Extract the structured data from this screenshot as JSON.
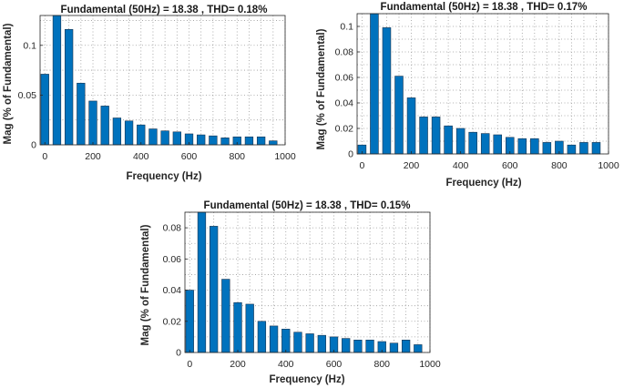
{
  "chart_data": [
    {
      "type": "bar",
      "title": "Fundamental (50Hz) = 18.38 , THD= 0.18%",
      "xlabel": "Frequency (Hz)",
      "ylabel": "Mag (% of Fundamental)",
      "xlim": [
        -20,
        1000
      ],
      "ylim": [
        0,
        0.13
      ],
      "grid": true,
      "xticks": [
        0,
        200,
        400,
        600,
        800,
        1000
      ],
      "yticks": [
        0,
        0.05,
        0.1
      ],
      "x": [
        0,
        50,
        100,
        150,
        200,
        250,
        300,
        350,
        400,
        450,
        500,
        550,
        600,
        650,
        700,
        750,
        800,
        850,
        900,
        950
      ],
      "values": [
        0.071,
        0.13,
        0.116,
        0.062,
        0.044,
        0.039,
        0.027,
        0.024,
        0.02,
        0.016,
        0.014,
        0.013,
        0.011,
        0.01,
        0.009,
        0.007,
        0.008,
        0.008,
        0.008,
        0.004
      ]
    },
    {
      "type": "bar",
      "title": "Fundamental (50Hz) = 18.38 , THD= 0.17%",
      "xlabel": "Frequency (Hz)",
      "ylabel": "Mag (% of Fundamental)",
      "xlim": [
        -20,
        1000
      ],
      "ylim": [
        0,
        0.11
      ],
      "grid": true,
      "xticks": [
        0,
        200,
        400,
        600,
        800,
        1000
      ],
      "yticks": [
        0,
        0.02,
        0.04,
        0.06,
        0.08,
        0.1
      ],
      "x": [
        0,
        50,
        100,
        150,
        200,
        250,
        300,
        350,
        400,
        450,
        500,
        550,
        600,
        650,
        700,
        750,
        800,
        850,
        900,
        950
      ],
      "values": [
        0.007,
        0.11,
        0.099,
        0.061,
        0.044,
        0.029,
        0.029,
        0.022,
        0.02,
        0.017,
        0.016,
        0.015,
        0.013,
        0.012,
        0.012,
        0.009,
        0.01,
        0.007,
        0.009,
        0.009
      ]
    },
    {
      "type": "bar",
      "title": "Fundamental (50Hz) = 18.38 , THD= 0.15%",
      "xlabel": "Frequency (Hz)",
      "ylabel": "Mag (% of Fundamental)",
      "xlim": [
        -20,
        1000
      ],
      "ylim": [
        0,
        0.09
      ],
      "grid": true,
      "xticks": [
        0,
        200,
        400,
        600,
        800,
        1000
      ],
      "yticks": [
        0,
        0.02,
        0.04,
        0.06,
        0.08
      ],
      "x": [
        0,
        50,
        100,
        150,
        200,
        250,
        300,
        350,
        400,
        450,
        500,
        550,
        600,
        650,
        700,
        750,
        800,
        850,
        900,
        950
      ],
      "values": [
        0.04,
        0.09,
        0.081,
        0.047,
        0.032,
        0.031,
        0.02,
        0.017,
        0.015,
        0.013,
        0.012,
        0.011,
        0.01,
        0.009,
        0.008,
        0.008,
        0.007,
        0.006,
        0.008,
        0.005
      ]
    }
  ],
  "tick_labels": {
    "x": [
      "0",
      "200",
      "400",
      "600",
      "800",
      "1000"
    ],
    "y1": [
      "0",
      "0.05",
      "0.1"
    ],
    "y2": [
      "0",
      "0.02",
      "0.04",
      "0.06",
      "0.08",
      "0.1"
    ],
    "y3": [
      "0",
      "0.02",
      "0.04",
      "0.06",
      "0.08"
    ]
  }
}
